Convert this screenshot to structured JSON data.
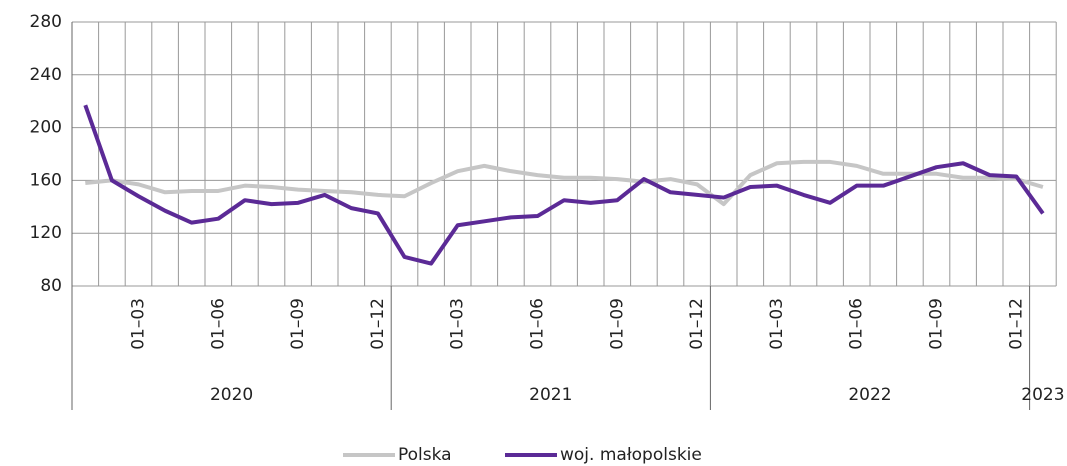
{
  "chart_data": {
    "type": "line",
    "categories": [
      null,
      null,
      "01–03",
      null,
      null,
      "01–06",
      null,
      null,
      "01–09",
      null,
      null,
      "01–12",
      null,
      null,
      "01–03",
      null,
      null,
      "01–06",
      null,
      null,
      "01–09",
      null,
      null,
      "01–12",
      null,
      null,
      "01–03",
      null,
      null,
      "01–06",
      null,
      null,
      "01–09",
      null,
      null,
      "01–12",
      null
    ],
    "years": [
      "2020",
      "2021",
      "2022",
      "2023"
    ],
    "series": [
      {
        "name": "Polska",
        "color": "#c6c6c6",
        "values": [
          158,
          160,
          157,
          151,
          152,
          152,
          156,
          155,
          153,
          152,
          151,
          149,
          148,
          158,
          167,
          171,
          167,
          164,
          162,
          162,
          161,
          159,
          161,
          157,
          142,
          164,
          173,
          174,
          174,
          171,
          165,
          165,
          165,
          162,
          162,
          161,
          155
        ]
      },
      {
        "name": "woj. małopolskie",
        "color": "#5b2a96",
        "values": [
          217,
          160,
          148,
          137,
          128,
          131,
          145,
          142,
          143,
          149,
          139,
          135,
          102,
          97,
          126,
          129,
          132,
          133,
          145,
          143,
          145,
          161,
          151,
          149,
          147,
          155,
          156,
          149,
          143,
          156,
          156,
          163,
          170,
          173,
          164,
          163,
          135
        ]
      }
    ],
    "ylim": [
      80,
      280
    ],
    "yticks": [
      80,
      120,
      160,
      200,
      240,
      280
    ],
    "grid": true
  }
}
